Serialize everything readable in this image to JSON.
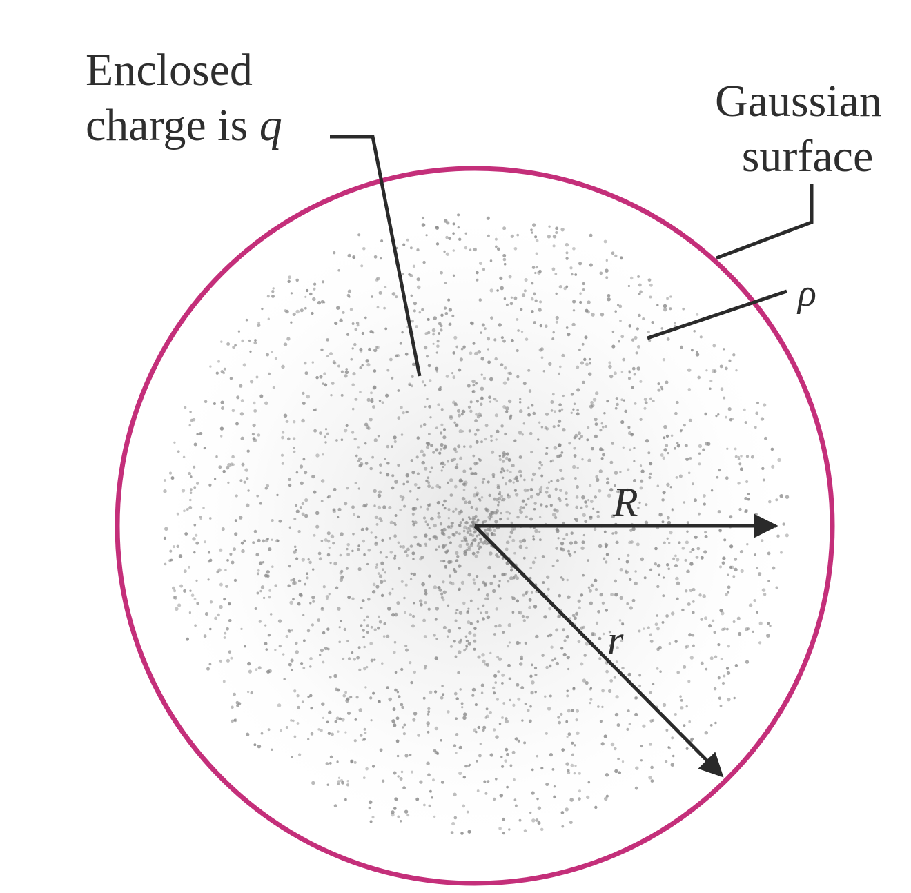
{
  "labels": {
    "enclosed_line1": "Enclosed",
    "enclosed_line2": "charge is",
    "enclosed_symbol": "q",
    "gaussian_line1": "Gaussian",
    "gaussian_line2": "surface",
    "rho": "ρ",
    "R": "R",
    "r": "r"
  },
  "colors": {
    "gaussian_surface": "#c42f7a",
    "dots": "#8a8a8a",
    "lines": "#2a2a2a"
  }
}
